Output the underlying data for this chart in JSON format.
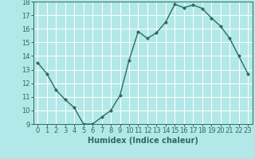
{
  "x": [
    0,
    1,
    2,
    3,
    4,
    5,
    6,
    7,
    8,
    9,
    10,
    11,
    12,
    13,
    14,
    15,
    16,
    17,
    18,
    19,
    20,
    21,
    22,
    23
  ],
  "y": [
    13.5,
    12.7,
    11.5,
    10.8,
    10.2,
    9.0,
    9.0,
    9.5,
    10.0,
    11.1,
    13.7,
    15.8,
    15.3,
    15.7,
    16.5,
    17.8,
    17.55,
    17.75,
    17.5,
    16.8,
    16.2,
    15.3,
    14.0,
    12.7
  ],
  "line_color": "#2e6b5e",
  "marker": "D",
  "marker_size": 2.0,
  "bg_color": "#b3e8e8",
  "grid_color": "#ffffff",
  "xlabel": "Humidex (Indice chaleur)",
  "xlim": [
    -0.5,
    23.5
  ],
  "ylim": [
    9,
    18
  ],
  "yticks": [
    9,
    10,
    11,
    12,
    13,
    14,
    15,
    16,
    17,
    18
  ],
  "xticks": [
    0,
    1,
    2,
    3,
    4,
    5,
    6,
    7,
    8,
    9,
    10,
    11,
    12,
    13,
    14,
    15,
    16,
    17,
    18,
    19,
    20,
    21,
    22,
    23
  ],
  "tick_label_fontsize": 6.0,
  "xlabel_fontsize": 7.0,
  "axis_color": "#2e6b5e",
  "linewidth": 1.0
}
